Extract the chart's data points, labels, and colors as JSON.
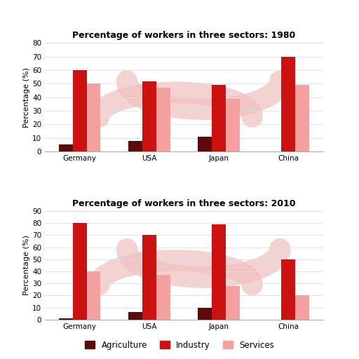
{
  "title_1980": "Percentage of workers in three sectors: 1980",
  "title_2010": "Percentage of workers in three sectors: 2010",
  "countries": [
    "Germany",
    "USA",
    "Japan",
    "China"
  ],
  "sectors": [
    "Agriculture",
    "Industry",
    "Services"
  ],
  "agri_color": "#5c0a0a",
  "industry_color": "#cc1111",
  "services_color": "#f4a0a0",
  "ylabel": "Percentage (%)",
  "data_1980": {
    "Agriculture": [
      5,
      8,
      11,
      0
    ],
    "Industry": [
      60,
      52,
      49,
      70
    ],
    "Services": [
      50,
      47,
      39,
      49
    ]
  },
  "data_2010": {
    "Agriculture": [
      1,
      6,
      10,
      0
    ],
    "Industry": [
      80,
      70,
      79,
      50
    ],
    "Services": [
      40,
      37,
      28,
      20
    ]
  },
  "ylim_1980": [
    0,
    80
  ],
  "ylim_2010": [
    0,
    90
  ],
  "yticks_1980": [
    0,
    10,
    20,
    30,
    40,
    50,
    60,
    70,
    80
  ],
  "yticks_2010": [
    0,
    10,
    20,
    30,
    40,
    50,
    60,
    70,
    80,
    90
  ],
  "bg_color": "#ffffff",
  "watermark_color": "#f2c0c0",
  "grid_color": "#dddddd",
  "bar_width": 0.2,
  "title_fontsize": 9,
  "label_fontsize": 8,
  "tick_fontsize": 7.5
}
